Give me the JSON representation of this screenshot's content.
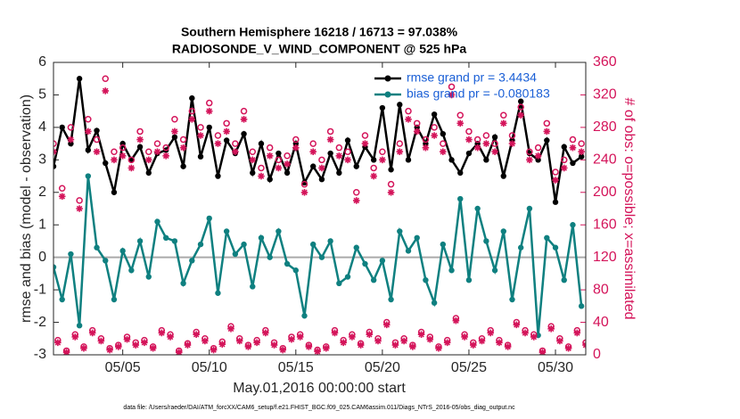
{
  "chart_data": {
    "type": "line",
    "title": [
      "Southern Hemisphere 16218 / 16713 = 97.038%",
      "RADIOSONDE_V_WIND_COMPONENT @ 525 hPa"
    ],
    "xlabel": "May.01,2016 00:00:00 start",
    "ylabel": "rmse and bias (model - observation)",
    "y2label": "# of obs: o=possible; x=assimilated",
    "footer": "data file: /Users/raeder/DAI/ATM_forcXX/CAM6_setup/f.e21.FHIST_BGC.f09_025.CAM6assim.011/Diags_NTrS_2016-05/obs_diag_output.nc",
    "xlim": [
      1,
      31.75
    ],
    "xticks": [
      {
        "value": 5,
        "label": "05/05"
      },
      {
        "value": 10,
        "label": "05/10"
      },
      {
        "value": 15,
        "label": "05/15"
      },
      {
        "value": 20,
        "label": "05/20"
      },
      {
        "value": 25,
        "label": "05/25"
      },
      {
        "value": 30,
        "label": "05/30"
      }
    ],
    "ylim": [
      -3,
      6
    ],
    "yticks": [
      -3,
      -2,
      -1,
      0,
      1,
      2,
      3,
      4,
      5,
      6
    ],
    "y2lim": [
      0,
      360
    ],
    "y2ticks": [
      0,
      40,
      80,
      120,
      160,
      200,
      240,
      280,
      320,
      360
    ],
    "zero_line": true,
    "legend": "upper right",
    "x": [
      1,
      1.5,
      2,
      2.5,
      3,
      3.5,
      4,
      4.5,
      5,
      5.5,
      6,
      6.5,
      7,
      7.5,
      8,
      8.5,
      9,
      9.5,
      10,
      10.5,
      11,
      11.5,
      12,
      12.5,
      13,
      13.5,
      14,
      14.5,
      15,
      15.5,
      16,
      16.5,
      17,
      17.5,
      18,
      18.5,
      19,
      19.5,
      20,
      20.5,
      21,
      21.5,
      22,
      22.5,
      23,
      23.5,
      24,
      24.5,
      25,
      25.5,
      26,
      26.5,
      27,
      27.5,
      28,
      28.5,
      29,
      29.5,
      30,
      30.5,
      31,
      31.5
    ],
    "series": [
      {
        "name": "rmse grand pr = 3.4434",
        "color": "#000000",
        "marker": "line",
        "values": [
          2.8,
          4.0,
          3.5,
          5.5,
          3.3,
          3.9,
          2.9,
          2.0,
          3.5,
          3.0,
          3.4,
          2.6,
          3.2,
          3.3,
          3.7,
          2.8,
          4.9,
          3.1,
          4.0,
          2.5,
          3.6,
          3.2,
          3.8,
          2.6,
          3.5,
          2.4,
          3.2,
          2.6,
          3.5,
          2.3,
          2.8,
          2.4,
          3.2,
          2.6,
          3.6,
          2.8,
          3.4,
          3.0,
          4.6,
          2.7,
          4.7,
          3.0,
          4.0,
          3.5,
          4.4,
          3.8,
          3.0,
          2.6,
          3.2,
          3.5,
          3.0,
          3.7,
          2.5,
          3.6,
          4.8,
          3.2,
          3.0,
          3.6,
          1.7,
          3.4,
          2.9,
          3.1
        ]
      },
      {
        "name": "bias grand pr = -0.080183",
        "color": "#0f8080",
        "marker": "line",
        "values": [
          -0.3,
          -1.3,
          0.1,
          -2.1,
          2.5,
          0.3,
          -0.1,
          -1.3,
          0.2,
          -0.4,
          0.5,
          -0.6,
          1.1,
          0.6,
          0.5,
          -0.8,
          -0.1,
          0.4,
          1.2,
          -1.1,
          0.8,
          0.1,
          0.4,
          -0.9,
          0.6,
          0.0,
          0.8,
          -0.2,
          -0.4,
          -1.8,
          0.4,
          0.0,
          0.5,
          -0.8,
          -0.6,
          0.3,
          -0.2,
          -0.7,
          -0.1,
          -1.3,
          0.8,
          0.2,
          0.6,
          -0.7,
          -1.4,
          0.4,
          -0.4,
          1.8,
          -0.7,
          1.5,
          0.5,
          -0.4,
          0.8,
          -1.3,
          0.3,
          1.5,
          -2.4,
          0.6,
          0.3,
          -0.7,
          1.0,
          -1.5
        ]
      },
      {
        "color": "#d4145a",
        "marker": "o",
        "axis": "y2",
        "values": [
          260,
          205,
          280,
          190,
          290,
          265,
          340,
          250,
          255,
          240,
          275,
          250,
          260,
          255,
          290,
          265,
          300,
          280,
          310,
          270,
          285,
          260,
          300,
          250,
          230,
          255,
          240,
          245,
          265,
          210,
          260,
          240,
          275,
          255,
          250,
          200,
          270,
          230,
          250,
          210,
          260,
          300,
          285,
          265,
          280,
          260,
          330,
          295,
          275,
          265,
          270,
          260,
          295,
          270,
          305,
          250,
          255,
          285,
          225,
          240,
          265,
          260
        ]
      },
      {
        "color": "#d4145a",
        "marker": "*",
        "axis": "y2",
        "values": [
          250,
          195,
          265,
          180,
          275,
          250,
          325,
          240,
          245,
          230,
          265,
          240,
          250,
          245,
          275,
          255,
          290,
          270,
          300,
          260,
          275,
          250,
          290,
          240,
          220,
          245,
          230,
          235,
          255,
          200,
          250,
          230,
          265,
          245,
          240,
          190,
          260,
          220,
          240,
          200,
          250,
          290,
          275,
          255,
          270,
          250,
          320,
          285,
          265,
          255,
          260,
          250,
          285,
          260,
          295,
          240,
          245,
          275,
          215,
          230,
          255,
          250
        ]
      },
      {
        "color": "#d4145a",
        "marker": "o",
        "axis": "y2",
        "x": [
          1.25,
          1.75,
          2.25,
          2.75,
          3.25,
          3.75,
          4.25,
          4.75,
          5.25,
          5.75,
          6.25,
          6.75,
          7.25,
          7.75,
          8.25,
          8.75,
          9.25,
          9.75,
          10.25,
          10.75,
          11.25,
          11.75,
          12.25,
          12.75,
          13.25,
          13.75,
          14.25,
          14.75,
          15.25,
          15.75,
          16.25,
          16.75,
          17.25,
          17.75,
          18.25,
          18.75,
          19.25,
          19.75,
          20.25,
          20.75,
          21.25,
          21.75,
          22.25,
          22.75,
          23.25,
          23.75,
          24.25,
          24.75,
          25.25,
          25.75,
          26.25,
          26.75,
          27.25,
          27.75,
          28.25,
          28.75,
          29.25,
          29.75,
          30.25,
          30.75,
          31.25,
          31.75
        ],
        "values": [
          18,
          5,
          25,
          10,
          30,
          20,
          8,
          12,
          22,
          15,
          18,
          10,
          30,
          25,
          5,
          14,
          28,
          20,
          8,
          16,
          35,
          20,
          12,
          18,
          30,
          15,
          8,
          22,
          25,
          12,
          6,
          10,
          30,
          18,
          25,
          14,
          28,
          20,
          40,
          15,
          20,
          12,
          28,
          22,
          10,
          18,
          45,
          25,
          15,
          20,
          30,
          18,
          12,
          40,
          30,
          25,
          5,
          35,
          20,
          10,
          30,
          15
        ]
      },
      {
        "color": "#d4145a",
        "marker": "*",
        "axis": "y2",
        "x": [
          1.25,
          1.75,
          2.25,
          2.75,
          3.25,
          3.75,
          4.25,
          4.75,
          5.25,
          5.75,
          6.25,
          6.75,
          7.25,
          7.75,
          8.25,
          8.75,
          9.25,
          9.75,
          10.25,
          10.75,
          11.25,
          11.75,
          12.25,
          12.75,
          13.25,
          13.75,
          14.25,
          14.75,
          15.25,
          15.75,
          16.25,
          16.75,
          17.25,
          17.75,
          18.25,
          18.75,
          19.25,
          19.75,
          20.25,
          20.75,
          21.25,
          21.75,
          22.25,
          22.75,
          23.25,
          23.75,
          24.25,
          24.75,
          25.25,
          25.75,
          26.25,
          26.75,
          27.25,
          27.75,
          28.25,
          28.75,
          29.25,
          29.75,
          30.25,
          30.75,
          31.25,
          31.75
        ],
        "values": [
          15,
          3,
          22,
          8,
          27,
          17,
          6,
          10,
          19,
          12,
          15,
          8,
          27,
          22,
          3,
          12,
          25,
          17,
          6,
          13,
          32,
          17,
          10,
          15,
          27,
          12,
          6,
          19,
          22,
          10,
          4,
          8,
          27,
          15,
          22,
          12,
          25,
          17,
          37,
          12,
          17,
          10,
          25,
          19,
          8,
          15,
          42,
          22,
          12,
          17,
          27,
          15,
          10,
          37,
          27,
          22,
          3,
          32,
          17,
          8,
          27,
          12
        ]
      }
    ]
  }
}
